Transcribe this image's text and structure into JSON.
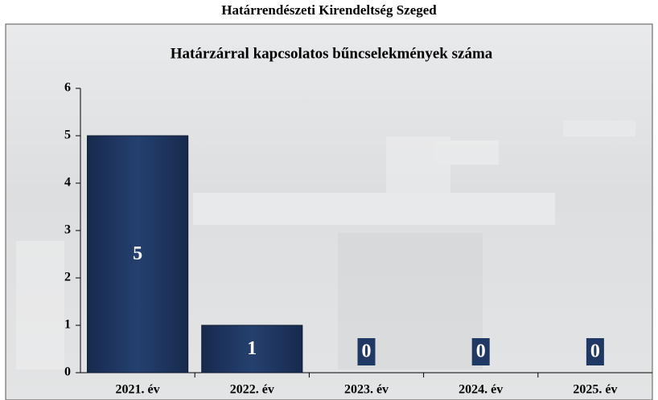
{
  "chart_data": {
    "type": "bar",
    "title": "Határrendészeti Kirendeltség Szeged",
    "subtitle": "Határzárral kapcsolatos bűncselekmények száma",
    "categories": [
      "2021. év",
      "2022. év",
      "2023. év",
      "2024. év",
      "2025. év"
    ],
    "values": [
      5,
      1,
      0,
      0,
      0
    ],
    "color": "#1f3864",
    "ylim": [
      0,
      6
    ],
    "yticks": [
      0,
      1,
      2,
      3,
      4,
      5,
      6
    ],
    "grid": false
  }
}
